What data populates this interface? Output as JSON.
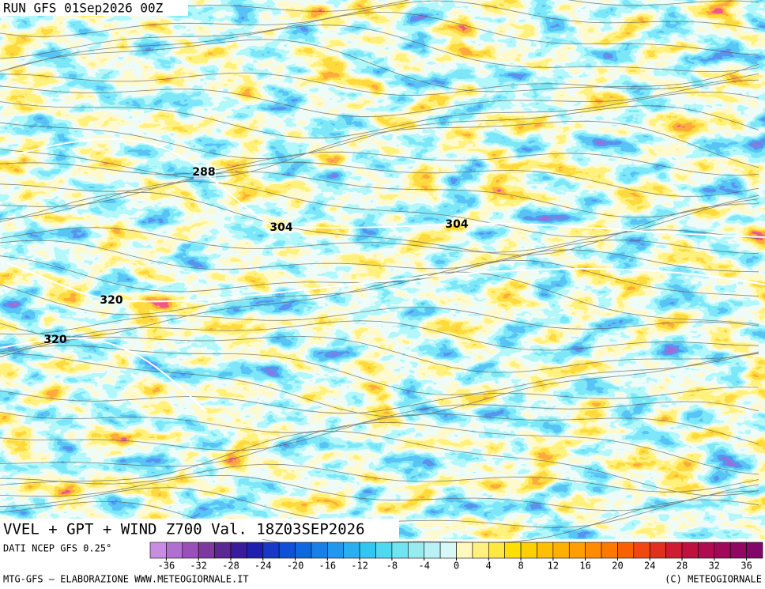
{
  "header": {
    "run": "RUN GFS 01Sep2026 00Z"
  },
  "map": {
    "title": "VVEL + GPT + WIND Z700 Val. 18Z03SEP2026",
    "contour_labels": [
      "288",
      "304",
      "304",
      "320",
      "320"
    ]
  },
  "legend": {
    "source": "DATI NCEP GFS 0.25°",
    "lim": [
      -38,
      38
    ],
    "ticks": [
      -36,
      -32,
      -28,
      -24,
      -20,
      -16,
      -12,
      -8,
      -4,
      0,
      4,
      8,
      12,
      16,
      20,
      24,
      28,
      32,
      36
    ],
    "colors": [
      "#c88ce0",
      "#b070d0",
      "#9a50b8",
      "#7d3a9e",
      "#5a2890",
      "#3a1c9a",
      "#2020b0",
      "#1838c8",
      "#1050d8",
      "#1068e0",
      "#1880e8",
      "#2098f0",
      "#28b0f0",
      "#30c8f0",
      "#50d8f0",
      "#70e4f0",
      "#98ecf0",
      "#b8f2f4",
      "#d8f8f8",
      "#fff8c0",
      "#fff080",
      "#ffe840",
      "#ffe000",
      "#ffd000",
      "#ffc000",
      "#ffb000",
      "#ffa000",
      "#ff8c00",
      "#ff7800",
      "#f86000",
      "#f04810",
      "#e03020",
      "#d01c30",
      "#c01040",
      "#b00c50",
      "#a00858",
      "#900860",
      "#800868"
    ]
  },
  "footer": {
    "left": "MTG-GFS — ELABORAZIONE WWW.METEOGIORNALE.IT",
    "right": "(C) METEOGIORNALE"
  }
}
